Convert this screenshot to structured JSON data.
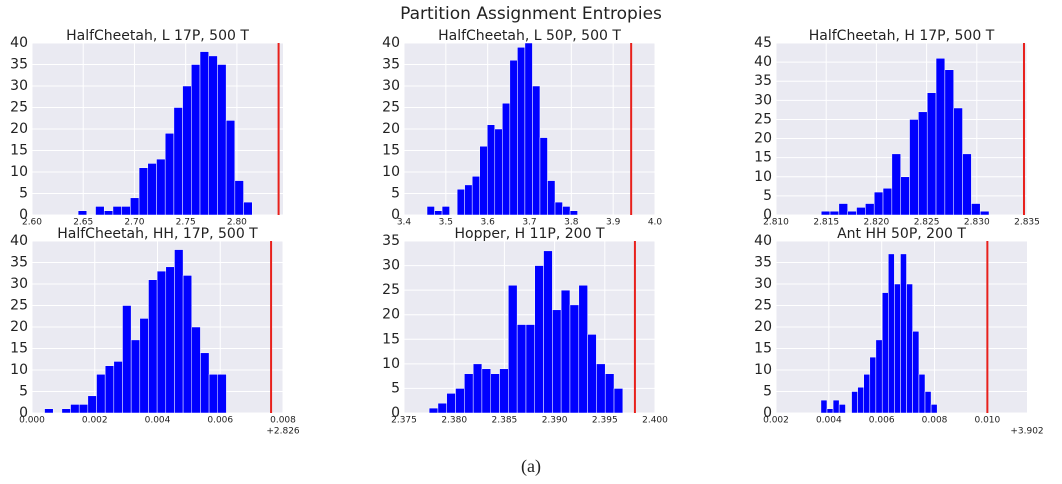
{
  "title": "Partition Assignment Entropies",
  "caption": "(a)",
  "chart_data": [
    {
      "type": "histogram",
      "title": "HalfCheetah, L 17P, 500 T",
      "color": "#0000ff",
      "vline": 2.8407,
      "vline_color": "#e8201c",
      "grid": true,
      "bins": [
        2.645,
        2.6535,
        2.662,
        2.6705,
        2.679,
        2.6875,
        2.696,
        2.7045,
        2.713,
        2.7215,
        2.73,
        2.7385,
        2.747,
        2.7555,
        2.764,
        2.7725,
        2.781,
        2.7895,
        2.798,
        2.8065,
        2.815
      ],
      "values": [
        1,
        0,
        2,
        1,
        2,
        2,
        4,
        11,
        12,
        13,
        19,
        25,
        30,
        35,
        38,
        37,
        35,
        22,
        8,
        3
      ],
      "xlim": [
        2.6,
        2.845
      ],
      "xticks": [
        {
          "value": 2.6,
          "label": "2.60"
        },
        2.65,
        {
          "value": 2.7,
          "label": "2.70"
        },
        2.75,
        {
          "value": 2.8,
          "label": "2.80"
        }
      ],
      "ylim": [
        0,
        40
      ],
      "yticks": [
        0,
        5,
        10,
        15,
        20,
        25,
        30,
        35,
        40
      ]
    },
    {
      "type": "histogram",
      "title": "HalfCheetah, L 50P, 500 T",
      "color": "#0000ff",
      "vline": 3.943,
      "vline_color": "#e8201c",
      "grid": true,
      "bins": [
        3.455,
        3.473,
        3.491,
        3.509,
        3.527,
        3.545,
        3.563,
        3.581,
        3.599,
        3.617,
        3.635,
        3.653,
        3.671,
        3.689,
        3.707,
        3.725,
        3.743,
        3.761,
        3.779,
        3.797,
        3.815
      ],
      "values": [
        2,
        1,
        2,
        0,
        6,
        7,
        9,
        16,
        21,
        20,
        26,
        36,
        39,
        40,
        30,
        18,
        8,
        3,
        2,
        1
      ],
      "xlim": [
        3.4,
        4.0
      ],
      "xticks": [
        3.4,
        3.5,
        3.6,
        3.7,
        3.8,
        3.9,
        {
          "value": 4.0,
          "label": "4.0"
        }
      ],
      "ylim": [
        0,
        40
      ],
      "yticks": [
        0,
        5,
        10,
        15,
        20,
        25,
        30,
        35,
        40
      ]
    },
    {
      "type": "histogram",
      "title": "HalfCheetah, H 17P, 500 T",
      "color": "#0000ff",
      "vline": 2.8347,
      "vline_color": "#e8201c",
      "grid": true,
      "bins": [
        2.8145,
        2.81538,
        2.81626,
        2.81714,
        2.81802,
        2.8189,
        2.81978,
        2.82066,
        2.82154,
        2.82242,
        2.8233,
        2.82418,
        2.82506,
        2.82594,
        2.82682,
        2.8277,
        2.82858,
        2.82946,
        2.83034,
        2.83122
      ],
      "values": [
        1,
        1,
        3,
        1,
        2,
        3,
        6,
        7,
        16,
        10,
        25,
        27,
        32,
        41,
        38,
        28,
        16,
        3,
        1
      ],
      "xlim": [
        2.81,
        2.835
      ],
      "xticks": [
        {
          "value": 2.81,
          "label": "2.810"
        },
        2.815,
        {
          "value": 2.82,
          "label": "2.820"
        },
        2.825,
        {
          "value": 2.83,
          "label": "2.830"
        },
        2.835
      ],
      "ylim": [
        0,
        45
      ],
      "yticks": [
        0,
        5,
        10,
        15,
        20,
        25,
        30,
        35,
        40,
        45
      ]
    },
    {
      "type": "histogram",
      "title": "HalfCheetah, HH, 17P, 500 T",
      "color": "#0000ff",
      "vline": 0.00762,
      "vline_color": "#e8201c",
      "grid": true,
      "offset_label": "+2.826",
      "bins": [
        0.0004,
        0.000676,
        0.000952,
        0.001228,
        0.001504,
        0.00178,
        0.002056,
        0.002332,
        0.002608,
        0.002884,
        0.00316,
        0.003436,
        0.003712,
        0.003988,
        0.004264,
        0.00454,
        0.004816,
        0.005092,
        0.005368,
        0.005644,
        0.00592,
        0.006196
      ],
      "values": [
        1,
        0,
        1,
        2,
        2,
        4,
        9,
        11,
        12,
        25,
        17,
        22,
        31,
        33,
        34,
        38,
        32,
        20,
        14,
        9,
        9
      ],
      "xlim": [
        0,
        0.008
      ],
      "xticks": [
        {
          "value": 0,
          "label": "0.000"
        },
        0.002,
        0.004,
        0.006,
        0.008
      ],
      "ylim": [
        0,
        40
      ],
      "yticks": [
        0,
        5,
        10,
        15,
        20,
        25,
        30,
        35,
        40
      ]
    },
    {
      "type": "histogram",
      "title": "Hopper, H 11P, 200 T",
      "color": "#0000ff",
      "vline": 2.398,
      "vline_color": "#e8201c",
      "grid": true,
      "bins": [
        2.3775,
        2.37838,
        2.37925,
        2.38013,
        2.38101,
        2.38189,
        2.38276,
        2.38364,
        2.38452,
        2.38539,
        2.38627,
        2.38715,
        2.38802,
        2.3889,
        2.38978,
        2.39065,
        2.39153,
        2.39241,
        2.39329,
        2.39416,
        2.39504,
        2.39592,
        2.3968
      ],
      "values": [
        1,
        2,
        4,
        5,
        8,
        10,
        9,
        8,
        9,
        26,
        18,
        18,
        30,
        33,
        21,
        25,
        22,
        26,
        16,
        10,
        8,
        5
      ],
      "xlim": [
        2.375,
        2.4
      ],
      "xticks": [
        2.375,
        {
          "value": 2.38,
          "label": "2.380"
        },
        2.385,
        {
          "value": 2.39,
          "label": "2.390"
        },
        2.395,
        {
          "value": 2.4,
          "label": "2.400"
        }
      ],
      "ylim": [
        0,
        35
      ],
      "yticks": [
        0,
        5,
        10,
        15,
        20,
        25,
        30,
        35
      ]
    },
    {
      "type": "histogram",
      "title": "Ant HH 50P, 200 T",
      "color": "#0000ff",
      "vline": 0.01,
      "vline_color": "#e8201c",
      "grid": true,
      "offset_label": "+3.902",
      "bins": [
        0.0037,
        0.00393,
        0.00416,
        0.00439,
        0.00463,
        0.00486,
        0.00509,
        0.00532,
        0.00555,
        0.00578,
        0.00602,
        0.00625,
        0.00648,
        0.00671,
        0.00694,
        0.00717,
        0.00741,
        0.00764,
        0.00787,
        0.0081
      ],
      "values": [
        3,
        1,
        3,
        2,
        0,
        5,
        6,
        9,
        13,
        17,
        28,
        37,
        30,
        37,
        30,
        19,
        9,
        5,
        2
      ],
      "xlim": [
        0.002,
        0.0115
      ],
      "xticks": [
        0.002,
        0.004,
        0.006,
        0.008,
        {
          "value": 0.01,
          "label": "0.010"
        }
      ],
      "ylim": [
        0,
        40
      ],
      "yticks": [
        0,
        5,
        10,
        15,
        20,
        25,
        30,
        35,
        40
      ]
    }
  ]
}
